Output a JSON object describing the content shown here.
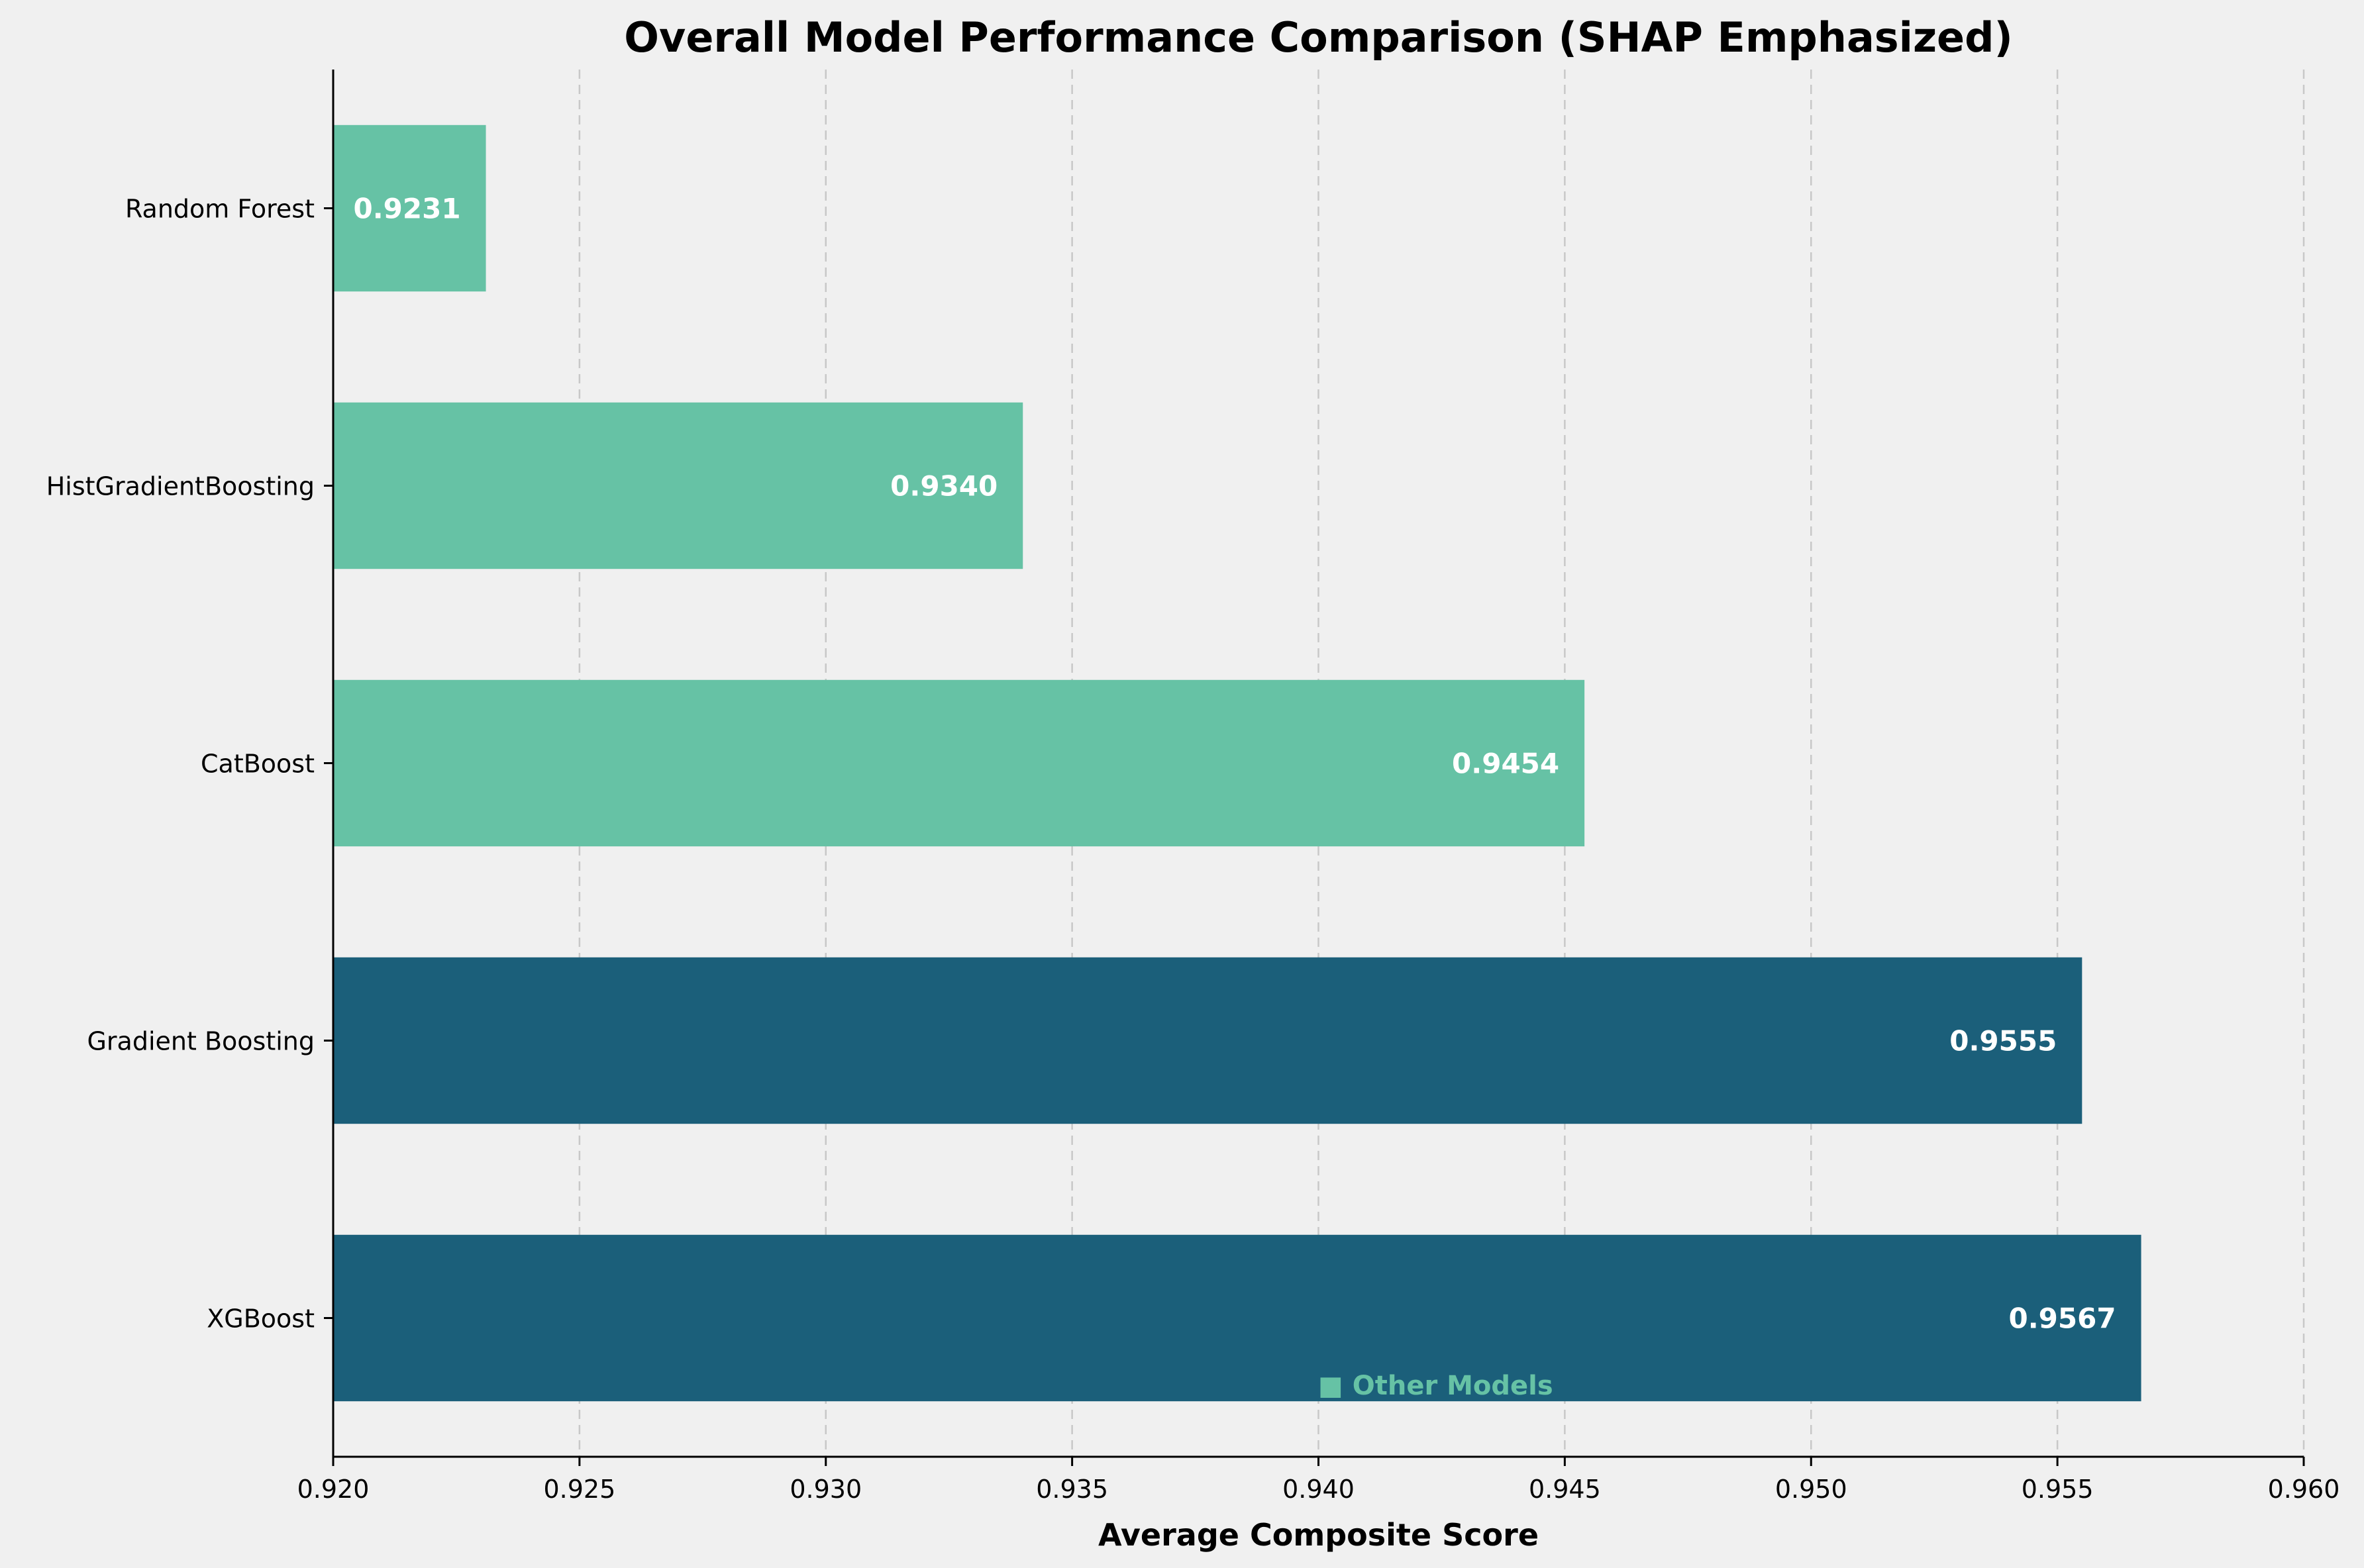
{
  "chart_data": {
    "type": "bar",
    "orientation": "horizontal",
    "title": "Overall Model Performance Comparison (SHAP Emphasized)",
    "xlabel": "Average Composite Score",
    "ylabel": "",
    "xlim": [
      0.92,
      0.96
    ],
    "xticks": [
      0.92,
      0.925,
      0.93,
      0.935,
      0.94,
      0.945,
      0.95,
      0.955,
      0.96
    ],
    "xtick_labels": [
      "0.920",
      "0.925",
      "0.930",
      "0.935",
      "0.940",
      "0.945",
      "0.950",
      "0.955",
      "0.960"
    ],
    "grid": "x-dashed",
    "categories": [
      "XGBoost",
      "Gradient Boosting",
      "CatBoost",
      "HistGradientBoosting",
      "Random Forest"
    ],
    "values": [
      0.9567,
      0.9555,
      0.9454,
      0.934,
      0.9231
    ],
    "value_labels": [
      "0.9567",
      "0.9555",
      "0.9454",
      "0.9340",
      "0.9231"
    ],
    "bar_colors": [
      "#1b5f7a",
      "#1b5f7a",
      "#66c2a5",
      "#66c2a5",
      "#66c2a5"
    ],
    "legend": {
      "placement": "bottom",
      "items": [
        {
          "marker": "■",
          "label": "Other Models",
          "color": "#66c2a5"
        }
      ]
    }
  },
  "colors": {
    "background": "#f0f0f0",
    "primary": "#1b5f7a",
    "secondary": "#66c2a5"
  }
}
